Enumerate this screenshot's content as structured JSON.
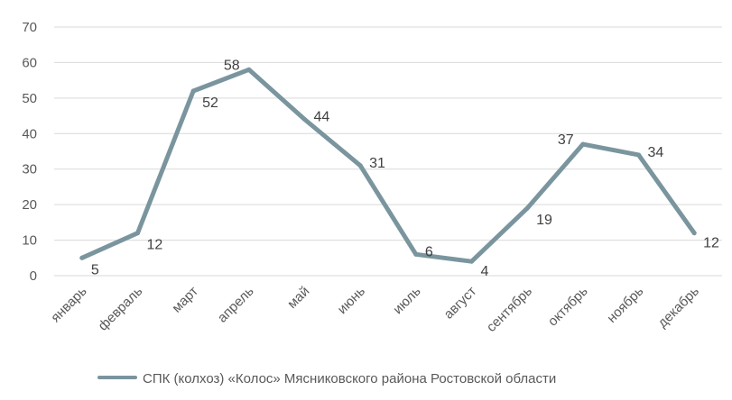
{
  "chart_data": {
    "type": "line",
    "categories": [
      "январь",
      "февраль",
      "март",
      "апрель",
      "май",
      "июнь",
      "июль",
      "август",
      "сентябрь",
      "октябрь",
      "ноябрь",
      "декабрь"
    ],
    "series": [
      {
        "name": "СПК (колхоз) «Колос» Мясниковского района Ростовской области",
        "values": [
          5,
          12,
          52,
          58,
          44,
          31,
          6,
          4,
          19,
          37,
          34,
          12
        ],
        "color": "#7a959e"
      }
    ],
    "ylim": [
      0,
      70
    ],
    "yticks": [
      0,
      10,
      20,
      30,
      40,
      50,
      60,
      70
    ],
    "grid": true,
    "legend": "bottom",
    "data_labels": true,
    "gridline_color": "#d9d9d9"
  }
}
